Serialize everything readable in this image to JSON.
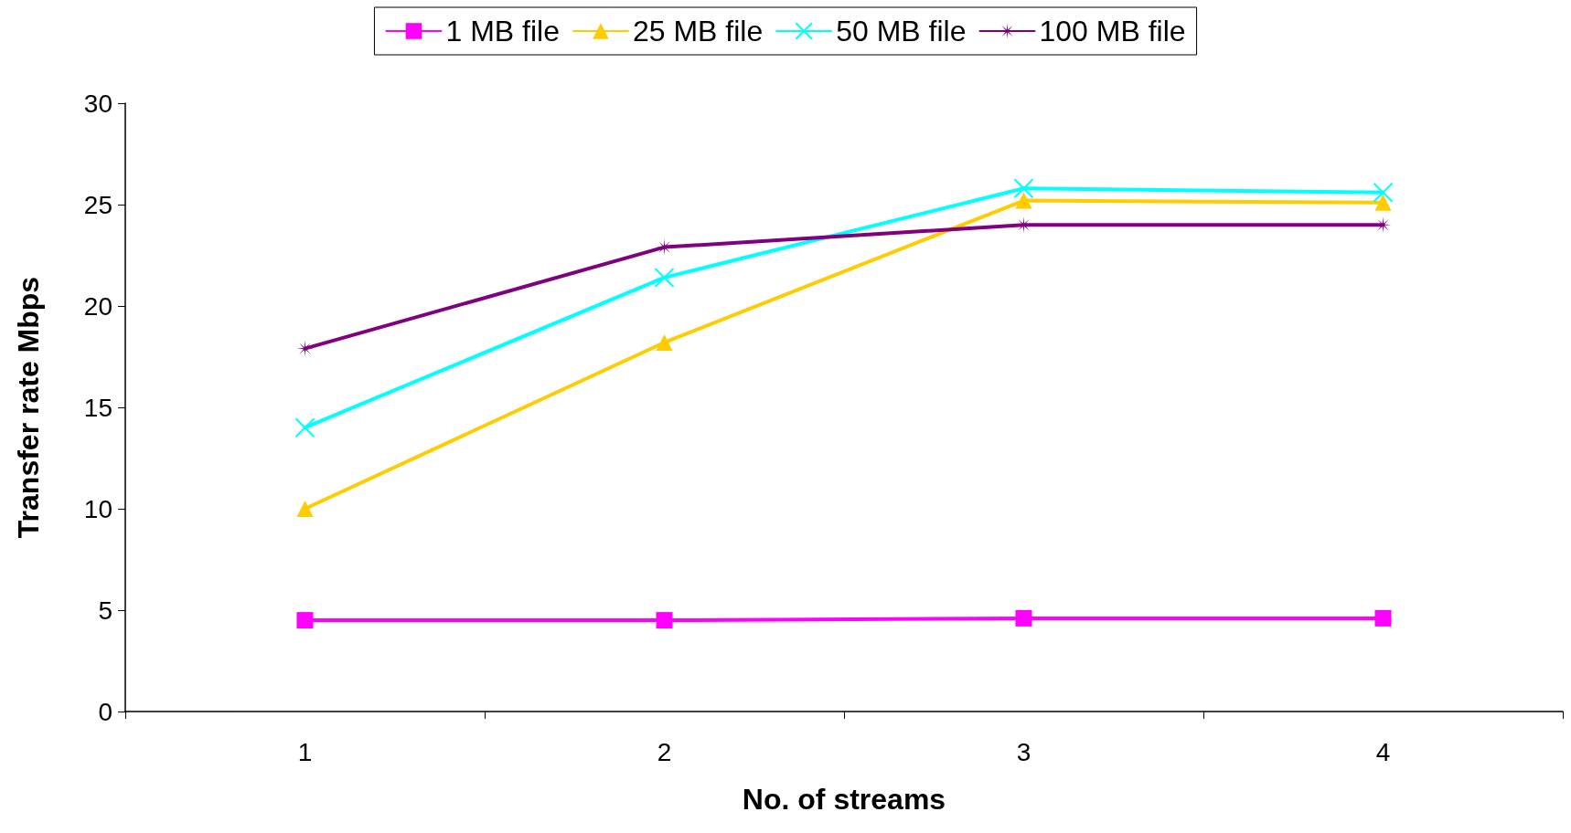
{
  "chart_data": {
    "type": "line",
    "xlabel": "No. of streams",
    "ylabel": "Transfer rate Mbps",
    "categories": [
      "1",
      "2",
      "3",
      "4"
    ],
    "ylim": [
      0,
      30
    ],
    "yticks": [
      0,
      5,
      10,
      15,
      20,
      25,
      30
    ],
    "grid": false,
    "legend": "top",
    "line_style": "solid",
    "series": [
      {
        "name": "1 MB file",
        "color": "#ff00ff",
        "marker": "square",
        "values": [
          4.5,
          4.5,
          4.6,
          4.6
        ]
      },
      {
        "name": "25 MB file",
        "color": "#ffcc00",
        "marker": "triangle",
        "values": [
          10.0,
          18.2,
          25.2,
          25.1
        ]
      },
      {
        "name": "50 MB file",
        "color": "#00ffff",
        "marker": "cross",
        "values": [
          14.0,
          21.4,
          25.8,
          25.6
        ]
      },
      {
        "name": "100 MB file",
        "color": "#800080",
        "marker": "star",
        "values": [
          17.9,
          22.9,
          24.0,
          24.0
        ]
      }
    ]
  }
}
